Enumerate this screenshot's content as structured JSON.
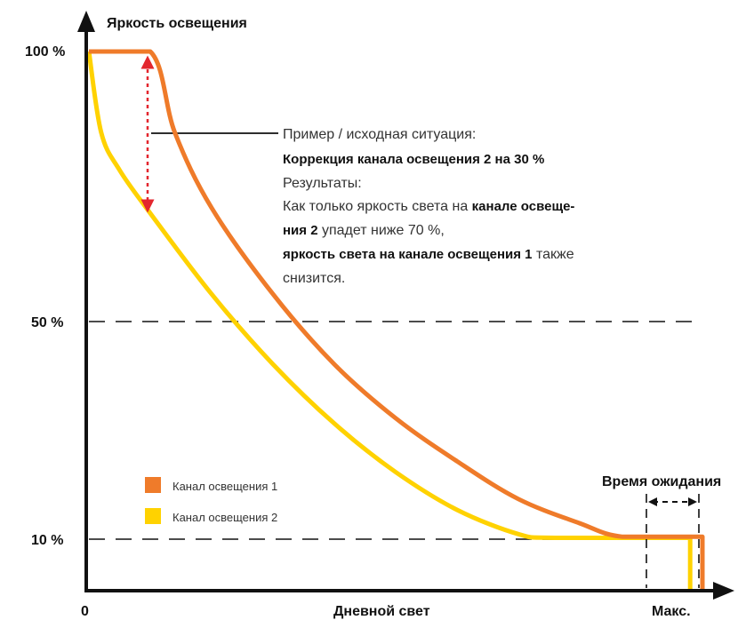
{
  "chart_data": {
    "type": "line",
    "ylabel": "Яркость освещения",
    "xlabel": "Дневной свет",
    "x_ticks": [
      "0",
      "Макс."
    ],
    "y_ticks": [
      "100 %",
      "50 %",
      "10 %"
    ],
    "y_tick_values": [
      100,
      50,
      10
    ],
    "ylim": [
      0,
      100
    ],
    "xlim": [
      0,
      100
    ],
    "grid": "dashed lines at 50 % and 10 %",
    "legend_position": "bottom-left",
    "series": [
      {
        "name": "Канал освещения 1",
        "color": "#EF7B2A",
        "points": [
          [
            0,
            100
          ],
          [
            10,
            100
          ],
          [
            14,
            85
          ],
          [
            20,
            71
          ],
          [
            30,
            55
          ],
          [
            40,
            42
          ],
          [
            50,
            32
          ],
          [
            60,
            24
          ],
          [
            70,
            17
          ],
          [
            80,
            12.5
          ],
          [
            87,
            10
          ],
          [
            100,
            10
          ],
          [
            100,
            0
          ]
        ]
      },
      {
        "name": "Канал освещения 2",
        "color": "#FFD200",
        "points": [
          [
            0,
            100
          ],
          [
            2,
            85
          ],
          [
            5,
            78
          ],
          [
            10,
            70
          ],
          [
            20,
            55
          ],
          [
            30,
            42
          ],
          [
            40,
            31
          ],
          [
            50,
            22
          ],
          [
            60,
            15
          ],
          [
            70,
            10.5
          ],
          [
            76,
            9.8
          ],
          [
            98,
            9.8
          ],
          [
            98,
            0
          ]
        ]
      }
    ],
    "annotation": {
      "line1": "Пример / исходная ситуация:",
      "line2": "Коррекция канала освещения 2 на 30 %",
      "line3": "Результаты:",
      "line4_a": "Как только яркость света на ",
      "line4_b": "канале освеще-",
      "line5_a": "ния 2",
      "line5_b": " упадет ниже 70 %,",
      "line6_a": "яркость света на канале освещения 1",
      "line6_b": " также",
      "line7": "снизится."
    },
    "wait_label": "Время ожидания",
    "arrow_color": "#E3262E"
  }
}
